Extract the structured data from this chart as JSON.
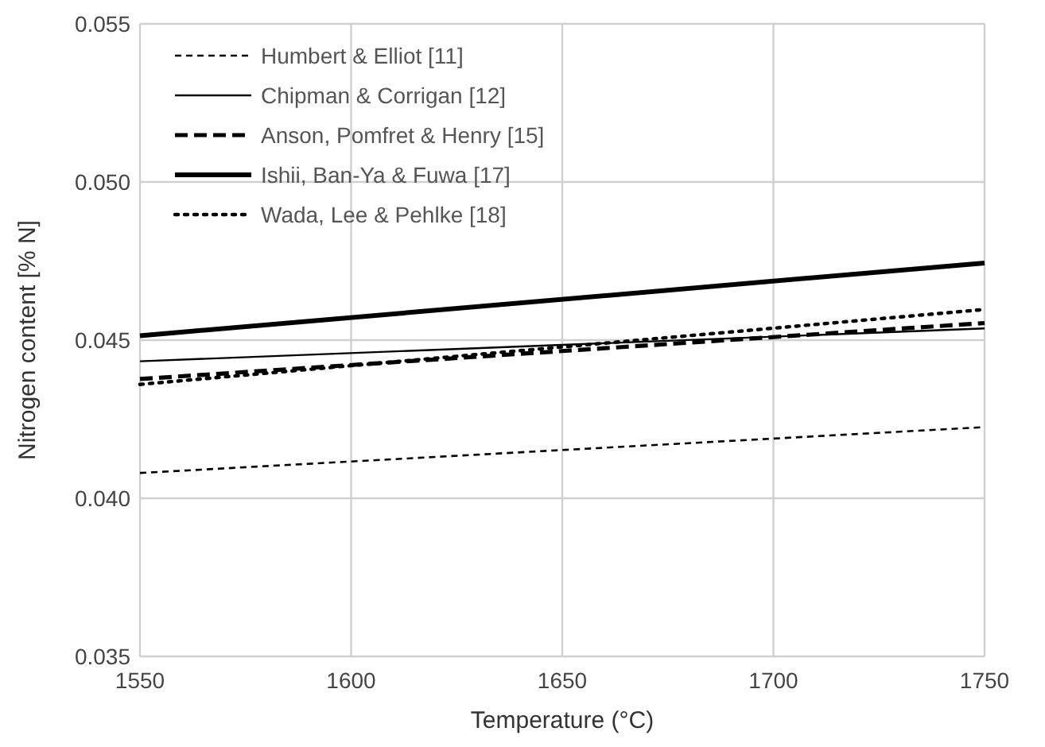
{
  "chart_data": {
    "type": "line",
    "xlabel": "Temperature (°C)",
    "ylabel": "Nitrogen content [% N]",
    "x": [
      1550,
      1750
    ],
    "xlim": [
      1550,
      1750
    ],
    "xticks": [
      1550,
      1600,
      1650,
      1700,
      1750
    ],
    "ylim": [
      0.035,
      0.055
    ],
    "yticks": [
      0.035,
      {
        "value": 0.04,
        "label": "0.040"
      },
      0.045,
      {
        "value": 0.05,
        "label": "0.050"
      },
      0.055
    ],
    "grid": true,
    "legend": "top left",
    "series": [
      {
        "name": "Humbert & Elliot [11]",
        "color": "#000000",
        "line_style": "dashed",
        "values": [
          0.0408,
          0.04225
        ]
      },
      {
        "name": "Chipman & Corrigan [12]",
        "color": "#000000",
        "line_style": "solid",
        "values": [
          0.04433,
          0.04537
        ]
      },
      {
        "name": "Anson, Pomfret & Henry [15]",
        "color": "#000000",
        "line_style": "dashed",
        "values": [
          0.04377,
          0.04554
        ]
      },
      {
        "name": "Ishii, Ban-Ya & Fuwa [17]",
        "color": "#000000",
        "line_style": "solid",
        "values": [
          0.04514,
          0.04744
        ]
      },
      {
        "name": "Wada, Lee & Pehlke [18]",
        "color": "#000000",
        "line_style": "dotted",
        "values": [
          0.0436,
          0.04597
        ]
      }
    ]
  }
}
